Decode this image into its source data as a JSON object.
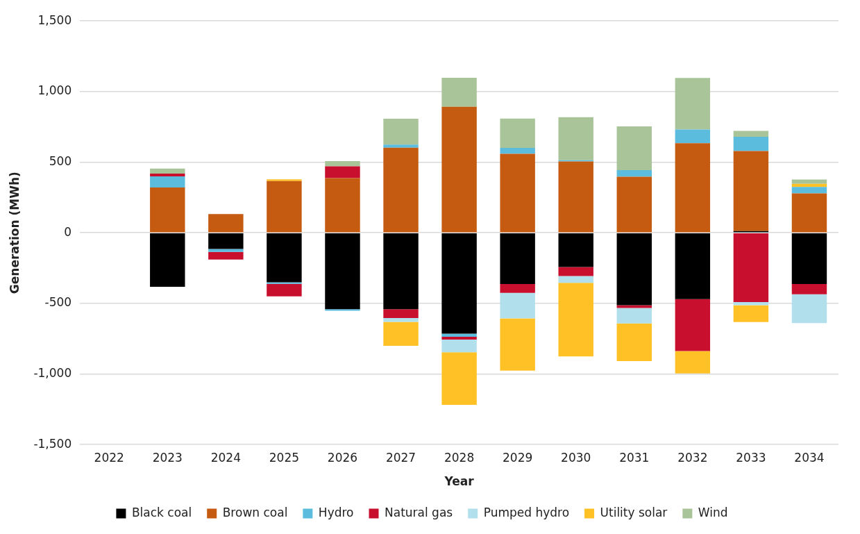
{
  "chart_data": {
    "type": "bar",
    "stacked": true,
    "xlabel": "Year",
    "ylabel": "Generation (MWh)",
    "categories": [
      "2022",
      "2023",
      "2024",
      "2025",
      "2026",
      "2027",
      "2028",
      "2029",
      "2030",
      "2031",
      "2032",
      "2033",
      "2034"
    ],
    "series": [
      {
        "name": "Black coal",
        "color": "#000000",
        "values": [
          null,
          -383,
          -115,
          -351,
          -541,
          -541,
          -715,
          -363,
          -243,
          -513,
          -470,
          12,
          -363
        ]
      },
      {
        "name": "Brown coal",
        "color": "#c55a11",
        "values": [
          null,
          321,
          133,
          366,
          387,
          602,
          892,
          559,
          505,
          397,
          634,
          567,
          279
        ]
      },
      {
        "name": "Hydro",
        "color": "#5bbcdd",
        "values": [
          null,
          78,
          -20,
          -11,
          -11,
          22,
          -22,
          42,
          9,
          47,
          97,
          101,
          45
        ]
      },
      {
        "name": "Natural gas",
        "color": "#c8102e",
        "values": [
          null,
          20,
          -54,
          -88,
          84,
          -63,
          -19,
          -63,
          -64,
          -20,
          -367,
          -491,
          -72
        ]
      },
      {
        "name": "Pumped hydro",
        "color": "#b1dfec",
        "values": [
          null,
          null,
          null,
          null,
          null,
          -27,
          -90,
          -181,
          -47,
          -109,
          null,
          -22,
          -205
        ]
      },
      {
        "name": "Utility solar",
        "color": "#ffc125",
        "values": [
          null,
          null,
          null,
          12,
          null,
          -170,
          -373,
          -369,
          -522,
          -267,
          -159,
          -119,
          22
        ]
      },
      {
        "name": "Wind",
        "color": "#a9c499",
        "values": [
          null,
          36,
          null,
          null,
          36,
          184,
          206,
          208,
          304,
          309,
          366,
          42,
          31
        ]
      }
    ],
    "ylim": [
      -1500,
      1500
    ],
    "yticks": [
      {
        "value": -1500,
        "label": "-1,500"
      },
      {
        "value": -1000,
        "label": "-1,000"
      },
      -500,
      0,
      500,
      {
        "value": 1000,
        "label": "1,000"
      },
      {
        "value": 1500,
        "label": "1,500"
      }
    ],
    "grid": "y",
    "legend": "bottom"
  }
}
